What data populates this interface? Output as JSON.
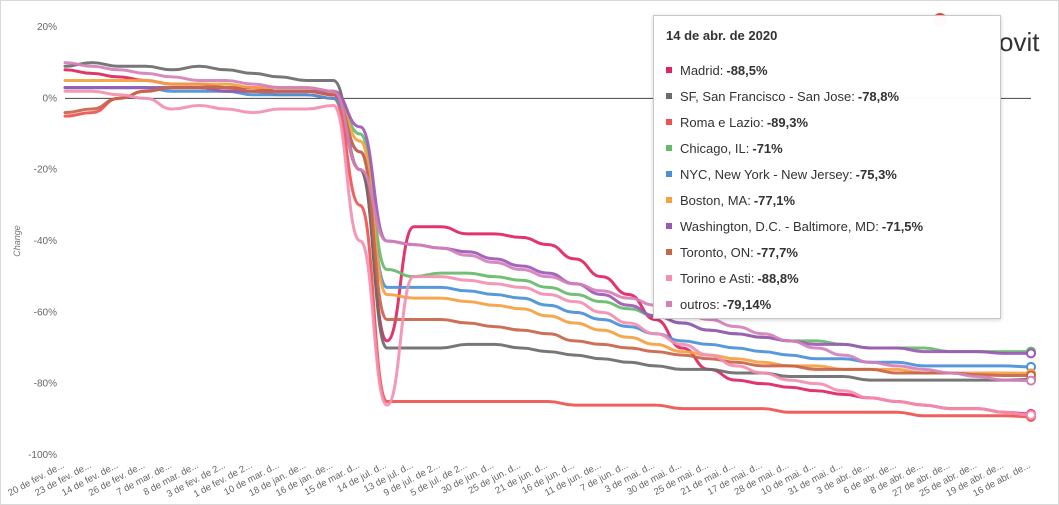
{
  "brand": {
    "text": "ovit",
    "logo_icon": "moovit-logo-icon"
  },
  "tooltip": {
    "title": "14 de abr. de 2020",
    "rows": [
      {
        "label": "Madrid:",
        "value": "-88,5%",
        "color": "#e0245e"
      },
      {
        "label": "SF, San Francisco - San Jose:",
        "value": "-78,8%",
        "color": "#6b6b6b"
      },
      {
        "label": "Roma e Lazio:",
        "value": "-89,3%",
        "color": "#ef5350"
      },
      {
        "label": "Chicago, IL:",
        "value": "-71%",
        "color": "#66bb6a"
      },
      {
        "label": "NYC, New York - New Jersey:",
        "value": "-75,3%",
        "color": "#4a90d9"
      },
      {
        "label": "Boston, MA:",
        "value": "-77,1%",
        "color": "#f5a142"
      },
      {
        "label": "Washington, D.C. - Baltimore, MD:",
        "value": "-71,5%",
        "color": "#9b59b6"
      },
      {
        "label": "Toronto, ON:",
        "value": "-77,7%",
        "color": "#c8644a"
      },
      {
        "label": "Torino e Asti:",
        "value": "-88,8%",
        "color": "#f48fb1"
      },
      {
        "label": "outros:",
        "value": "-79,14%",
        "color": "#d480b8"
      }
    ]
  },
  "chart_data": {
    "type": "line",
    "ylabel": "Change",
    "ylim": [
      -100,
      20
    ],
    "yticks": [
      20,
      0,
      -20,
      -40,
      -60,
      -80,
      -100
    ],
    "ytick_labels": [
      "20%",
      "0%",
      "-20%",
      "-40%",
      "-60%",
      "-80%",
      "-100%"
    ],
    "grid": false,
    "reference_line": 0,
    "categories": [
      "20 de fev. de...",
      "23 de fev. de...",
      "14 de fev. de...",
      "26 de fev. de...",
      "7 de mar. de...",
      "8 de mar. de...",
      "3 de fev. de 2...",
      "1 de fev. de 2...",
      "10 de mar. d...",
      "18 de jan. de...",
      "16 de jan. de...",
      "15 de mar. d...",
      "14 de jul. d...",
      "13 de jul. d...",
      "9 de jul. de 2...",
      "5 de jul. de 2...",
      "30 de jun. d...",
      "25 de jun. d...",
      "21 de jun. d...",
      "16 de jun. d...",
      "11 de jun. de...",
      "7 de jun. d...",
      "3 de mai. d...",
      "30 de mai. d...",
      "25 de mai. d...",
      "21 de mai. d...",
      "17 de mai. d...",
      "28 de mai. d...",
      "10 de mai. d...",
      "31 de mai. d...",
      "3 de abr. de...",
      "6 de abr. de...",
      "8 de abr. de...",
      "27 de abr. de...",
      "25 de abr. de...",
      "19 de abr. de...",
      "16 de abr. de..."
    ],
    "series": [
      {
        "name": "Madrid",
        "color": "#e0245e",
        "values": [
          8,
          7,
          6,
          5,
          4,
          4,
          3,
          3,
          2,
          2,
          1,
          -20,
          -68,
          -36,
          -36,
          -38,
          -38,
          -39,
          -41,
          -45,
          -50,
          -55,
          -62,
          -70,
          -76,
          -79,
          -80,
          -81,
          -82,
          -83,
          -84,
          -85,
          -86,
          -87,
          -87,
          -88,
          -88.5
        ]
      },
      {
        "name": "SF, San Francisco - San Jose",
        "color": "#6b6b6b",
        "values": [
          9,
          10,
          9,
          9,
          8,
          9,
          8,
          7,
          6,
          5,
          5,
          -20,
          -70,
          -70,
          -70,
          -69,
          -69,
          -70,
          -71,
          -72,
          -73,
          -74,
          -75,
          -76,
          -76,
          -77,
          -77,
          -78,
          -78,
          -78,
          -79,
          -79,
          -79,
          -79,
          -79,
          -79,
          -78.8
        ]
      },
      {
        "name": "Roma e Lazio",
        "color": "#ef5350",
        "values": [
          -5,
          -4,
          0,
          2,
          3,
          3,
          2,
          2,
          1,
          1,
          0,
          -30,
          -85,
          -85,
          -85,
          -85,
          -85,
          -85,
          -85,
          -86,
          -86,
          -86,
          -86,
          -87,
          -87,
          -87,
          -87,
          -88,
          -88,
          -88,
          -88,
          -88,
          -89,
          -89,
          -89,
          -89,
          -89.3
        ]
      },
      {
        "name": "Chicago, IL",
        "color": "#66bb6a",
        "values": [
          3,
          3,
          3,
          3,
          3,
          3,
          3,
          2,
          2,
          2,
          2,
          -10,
          -48,
          -50,
          -49,
          -49,
          -50,
          -51,
          -53,
          -55,
          -57,
          -59,
          -61,
          -63,
          -65,
          -66,
          -67,
          -68,
          -68,
          -69,
          -70,
          -70,
          -70,
          -71,
          -71,
          -71,
          -71
        ]
      },
      {
        "name": "NYC, New York - New Jersey",
        "color": "#4a90d9",
        "values": [
          3,
          3,
          3,
          3,
          2,
          2,
          2,
          1,
          1,
          1,
          0,
          -15,
          -53,
          -53,
          -53,
          -54,
          -55,
          -56,
          -58,
          -60,
          -62,
          -64,
          -66,
          -68,
          -69,
          -70,
          -71,
          -72,
          -73,
          -73,
          -74,
          -74,
          -75,
          -75,
          -75,
          -75,
          -75.3
        ]
      },
      {
        "name": "Boston, MA",
        "color": "#f5a142",
        "values": [
          5,
          5,
          5,
          5,
          4,
          4,
          4,
          3,
          3,
          3,
          2,
          -12,
          -55,
          -56,
          -56,
          -57,
          -58,
          -59,
          -61,
          -63,
          -65,
          -67,
          -69,
          -71,
          -72,
          -73,
          -74,
          -75,
          -75,
          -76,
          -76,
          -76,
          -77,
          -77,
          -77,
          -77,
          -77.1
        ]
      },
      {
        "name": "Washington, D.C. - Baltimore, MD",
        "color": "#9b59b6",
        "values": [
          3,
          3,
          3,
          3,
          3,
          3,
          2,
          2,
          2,
          2,
          2,
          -8,
          -40,
          -41,
          -42,
          -43,
          -45,
          -47,
          -49,
          -52,
          -55,
          -58,
          -61,
          -63,
          -65,
          -66,
          -67,
          -68,
          -69,
          -69,
          -70,
          -70,
          -71,
          -71,
          -71,
          -71.5,
          -71.5
        ]
      },
      {
        "name": "Toronto, ON",
        "color": "#c8644a",
        "values": [
          -4,
          -3,
          0,
          2,
          3,
          3,
          3,
          2,
          2,
          2,
          1,
          -15,
          -62,
          -62,
          -62,
          -63,
          -64,
          -65,
          -66,
          -68,
          -69,
          -70,
          -71,
          -72,
          -73,
          -74,
          -75,
          -75,
          -76,
          -76,
          -76,
          -77,
          -77,
          -77,
          -77.5,
          -77.7,
          -77.7
        ]
      },
      {
        "name": "Torino e Asti",
        "color": "#f48fb1",
        "values": [
          2,
          2,
          1,
          0,
          -3,
          -2,
          -3,
          -4,
          -3,
          -3,
          -2,
          -40,
          -86,
          -50,
          -50,
          -51,
          -52,
          -53,
          -55,
          -57,
          -60,
          -63,
          -66,
          -69,
          -72,
          -75,
          -77,
          -79,
          -80,
          -82,
          -84,
          -85,
          -86,
          -87,
          -87,
          -88,
          -88.8
        ]
      },
      {
        "name": "outros",
        "color": "#d480b8",
        "values": [
          10,
          9,
          8,
          7,
          6,
          5,
          5,
          4,
          3,
          3,
          2,
          -20,
          -40,
          -41,
          -42,
          -44,
          -46,
          -48,
          -50,
          -52,
          -54,
          -56,
          -58,
          -60,
          -62,
          -64,
          -66,
          -68,
          -70,
          -72,
          -74,
          -75,
          -76,
          -77,
          -78,
          -79,
          -79.14
        ]
      }
    ]
  }
}
